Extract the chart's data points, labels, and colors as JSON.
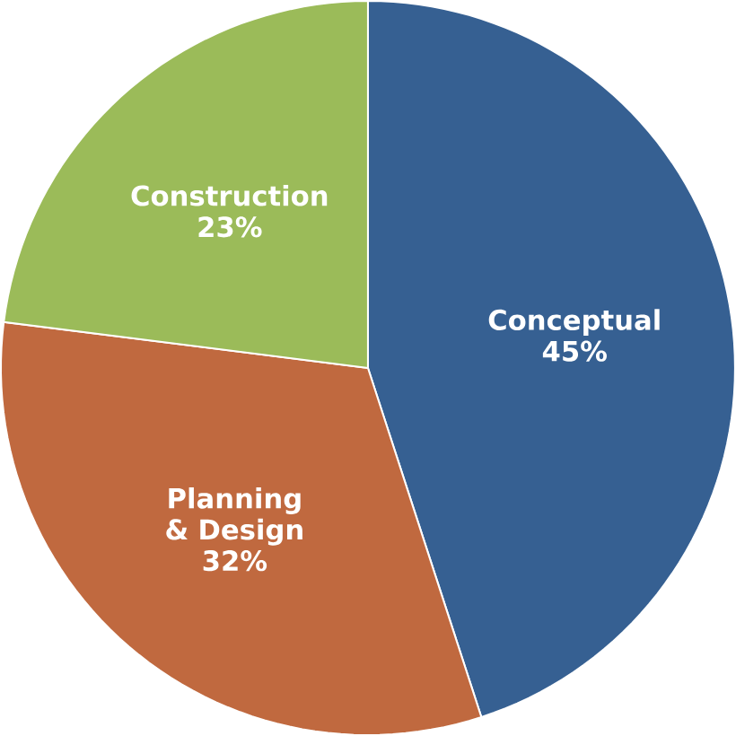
{
  "chart_data": {
    "type": "pie",
    "categories": [
      "Conceptual",
      "Planning & Design",
      "Construction"
    ],
    "values": [
      45,
      32,
      23
    ],
    "value_labels": [
      "45%",
      "32%",
      "23%"
    ],
    "colors": [
      "#366092",
      "#c0693f",
      "#9bbb59"
    ]
  }
}
